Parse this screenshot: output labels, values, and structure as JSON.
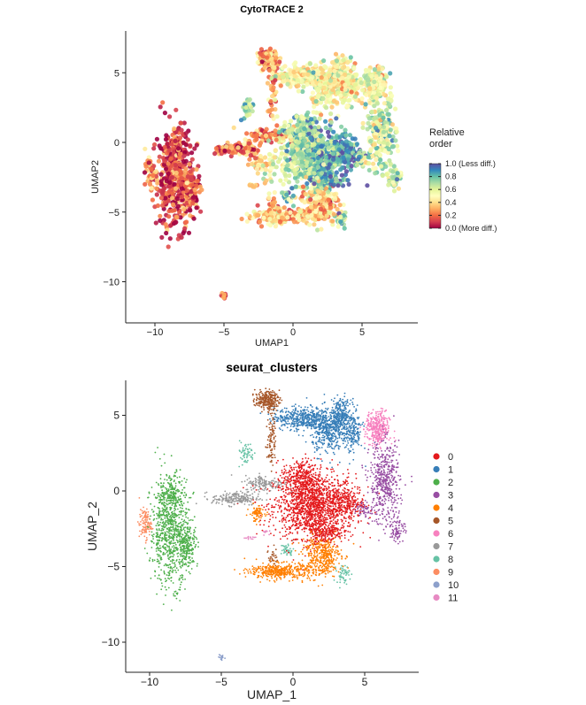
{
  "chart_data": [
    {
      "type": "scatter",
      "title": "CytoTRACE 2",
      "xlabel": "UMAP1",
      "ylabel": "UMAP2",
      "xlim": [
        -12,
        8.8
      ],
      "ylim": [
        -12.9,
        8
      ],
      "xticks": [
        -10,
        -5,
        0,
        5
      ],
      "yticks": [
        -10,
        -5,
        0,
        5
      ],
      "grid": false,
      "color_by": "Relative order",
      "legend": {
        "title_line1": "Relative",
        "title_line2": "order",
        "placement": "right",
        "colormap": "Spectral",
        "ticks": [
          "1.0 (Less diff.)",
          "0.8",
          "0.6",
          "0.4",
          "0.2",
          "0.0 (More diff.)"
        ],
        "tick_values": [
          1.0,
          0.8,
          0.6,
          0.4,
          0.2,
          0.0
        ]
      },
      "cluster_mean_order": {
        "0": 0.72,
        "1": 0.5,
        "2": 0.12,
        "3": 0.62,
        "4": 0.36,
        "5": 0.3,
        "6": 0.52,
        "7": 0.18,
        "8": 0.75,
        "9": 0.25,
        "10": 0.2,
        "11": 0.3
      },
      "colormap_stops": [
        "#9E0142",
        "#D53E4F",
        "#F46D43",
        "#FDAE61",
        "#FEE08B",
        "#FFFFBF",
        "#E6F598",
        "#ABDDA4",
        "#66C2A5",
        "#3288BD",
        "#5E4FA2"
      ]
    },
    {
      "type": "scatter",
      "title": "seurat_clusters",
      "xlabel": "UMAP_1",
      "ylabel": "UMAP_2",
      "xlim": [
        -11.7,
        8.8
      ],
      "ylim": [
        -12,
        7.3
      ],
      "xticks": [
        -10,
        -5,
        0,
        5
      ],
      "yticks": [
        -10,
        -5,
        0,
        5
      ],
      "grid": false,
      "legend": {
        "placement": "right"
      },
      "clusters": [
        {
          "name": "0",
          "color": "#E41A1C",
          "regions": [
            [
              1.5,
              -1.0,
              1.9,
              1.4,
              1500
            ],
            [
              0.6,
              0.9,
              0.9,
              0.8,
              300
            ],
            [
              2.2,
              -2.7,
              0.9,
              0.5,
              200
            ],
            [
              3.8,
              -0.8,
              0.7,
              0.5,
              150
            ]
          ]
        },
        {
          "name": "1",
          "color": "#377EB8",
          "regions": [
            [
              0.6,
              4.8,
              1.3,
              0.5,
              450
            ],
            [
              2.4,
              3.9,
              0.7,
              1.0,
              350
            ],
            [
              3.3,
              5.0,
              0.5,
              0.7,
              250
            ],
            [
              4.1,
              3.9,
              0.5,
              1.0,
              200
            ]
          ]
        },
        {
          "name": "2",
          "color": "#4DAF4A",
          "regions": [
            [
              -8.6,
              -2.6,
              0.9,
              2.4,
              800
            ],
            [
              -7.4,
              -3.6,
              0.5,
              0.9,
              200
            ],
            [
              -8.4,
              -0.2,
              0.5,
              0.6,
              120
            ]
          ]
        },
        {
          "name": "3",
          "color": "#984EA3",
          "regions": [
            [
              6.4,
              0.5,
              0.7,
              1.8,
              500
            ],
            [
              7.3,
              -2.5,
              0.35,
              0.6,
              80
            ],
            [
              5.0,
              -1.2,
              0.5,
              0.35,
              60
            ]
          ]
        },
        {
          "name": "4",
          "color": "#FF7F00",
          "regions": [
            [
              2.0,
              -4.3,
              0.9,
              0.9,
              400
            ],
            [
              -0.9,
              -5.3,
              1.4,
              0.35,
              400
            ],
            [
              -2.5,
              -1.5,
              0.35,
              0.35,
              80
            ]
          ]
        },
        {
          "name": "5",
          "color": "#A65628",
          "regions": [
            [
              -1.8,
              6.0,
              0.55,
              0.4,
              250
            ],
            [
              -1.5,
              3.6,
              0.2,
              1.4,
              100
            ],
            [
              -1.4,
              -4.3,
              0.2,
              0.5,
              30
            ]
          ]
        },
        {
          "name": "6",
          "color": "#F781BF",
          "regions": [
            [
              5.9,
              4.1,
              0.55,
              0.75,
              350
            ]
          ]
        },
        {
          "name": "7",
          "color": "#999999",
          "regions": [
            [
              -4.0,
              -0.5,
              1.1,
              0.3,
              200
            ],
            [
              -2.0,
              0.5,
              0.9,
              0.35,
              150
            ]
          ]
        },
        {
          "name": "8",
          "color": "#66C2A5",
          "regions": [
            [
              -3.3,
              2.5,
              0.4,
              0.5,
              60
            ],
            [
              3.5,
              -5.5,
              0.3,
              0.4,
              50
            ],
            [
              -0.4,
              -3.9,
              0.3,
              0.3,
              40
            ]
          ]
        },
        {
          "name": "9",
          "color": "#FC8D62",
          "regions": [
            [
              -10.3,
              -2.2,
              0.28,
              0.65,
              110
            ]
          ]
        },
        {
          "name": "10",
          "color": "#8DA0CB",
          "regions": [
            [
              -5.0,
              -11.0,
              0.12,
              0.18,
              20
            ]
          ]
        },
        {
          "name": "11",
          "color": "#E78AC3",
          "regions": [
            [
              -3.0,
              -3.1,
              0.3,
              0.1,
              15
            ],
            [
              -2.0,
              -2.7,
              0.2,
              0.1,
              10
            ]
          ]
        }
      ]
    }
  ]
}
